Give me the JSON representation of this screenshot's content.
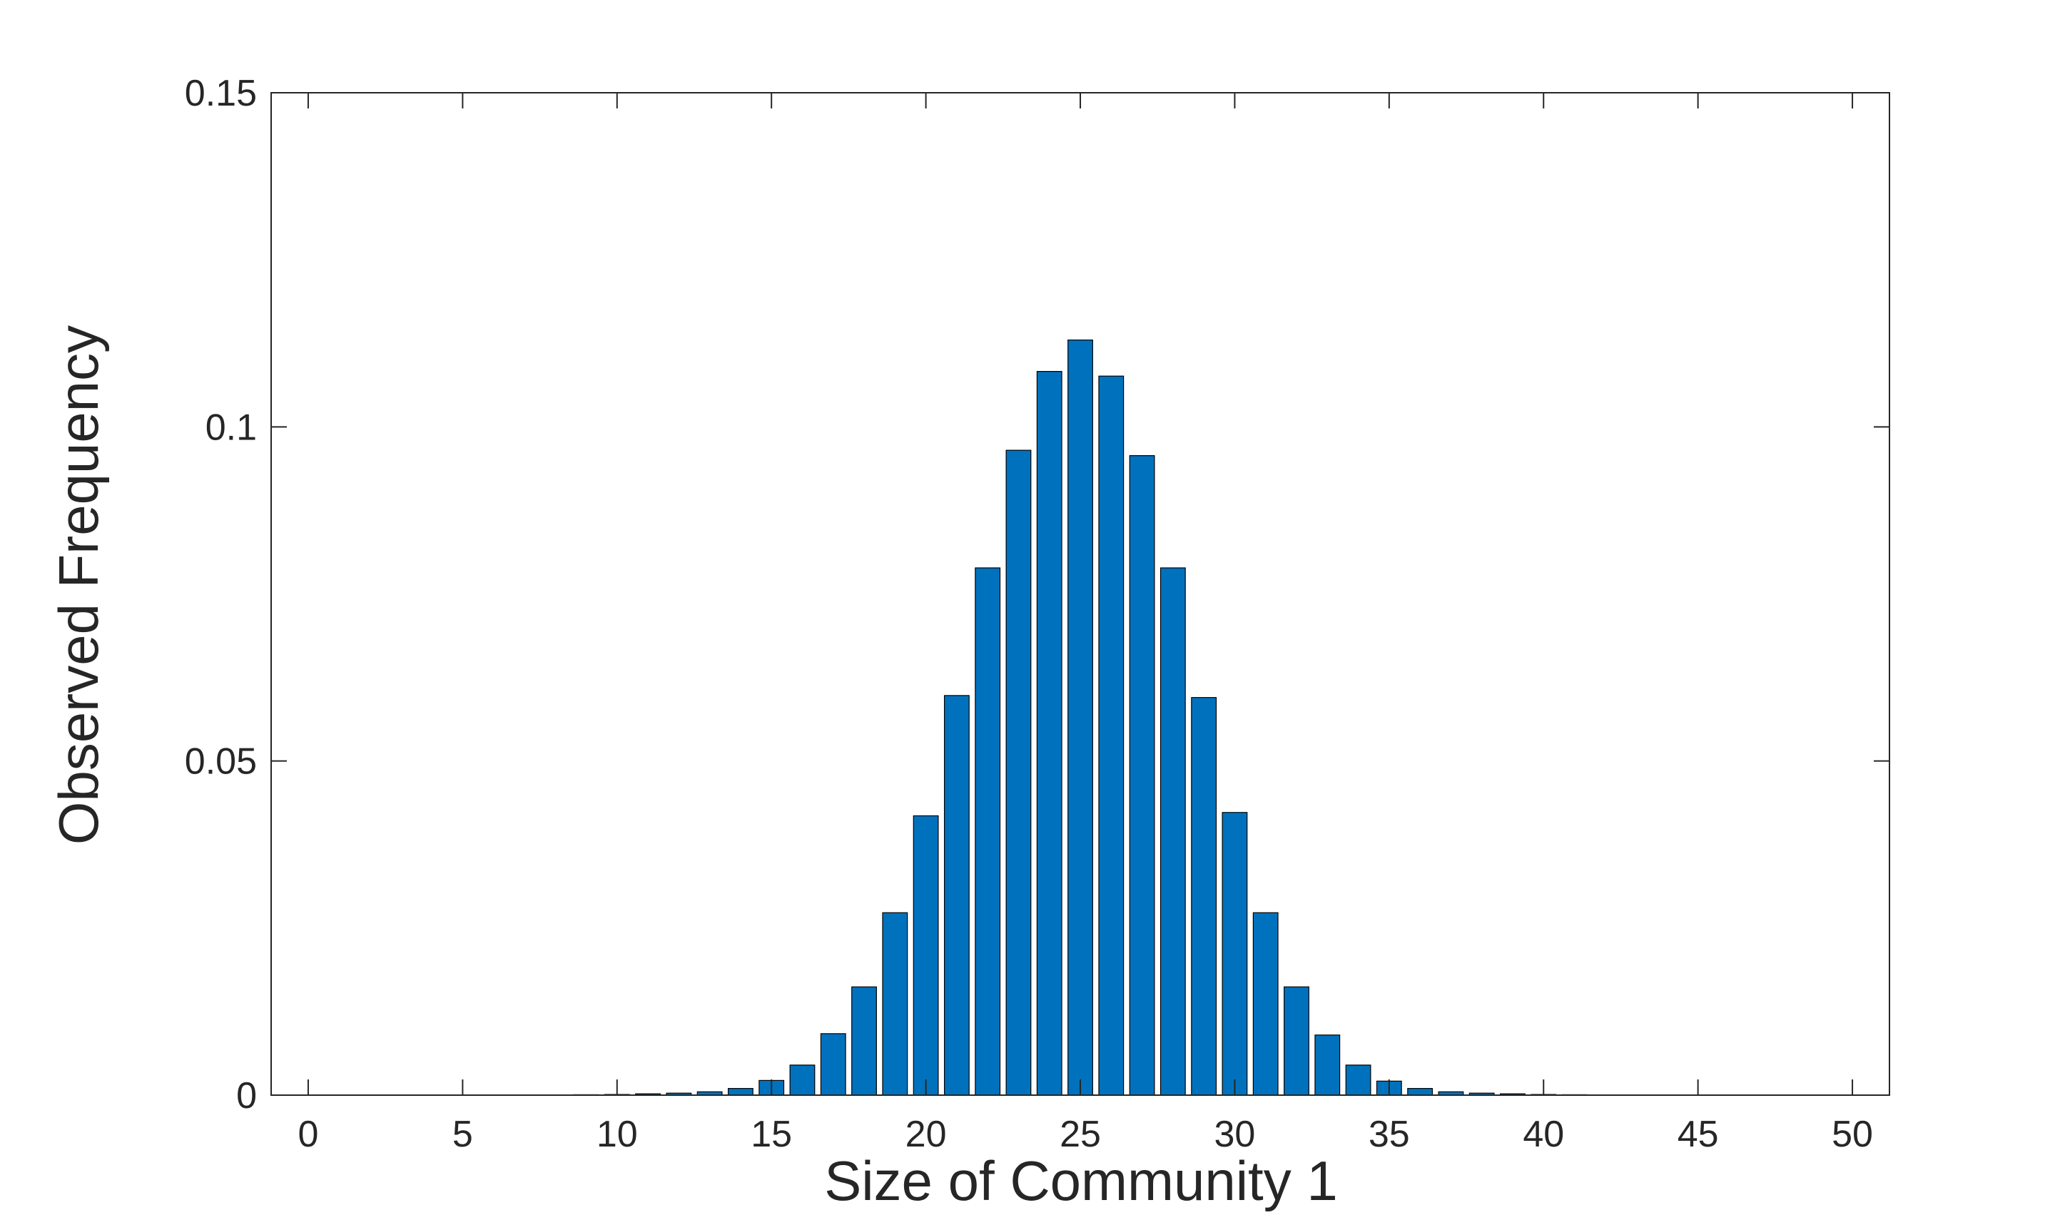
{
  "chart_data": {
    "type": "bar",
    "title": "",
    "xlabel": "Size of Community 1",
    "ylabel": "Observed Frequency",
    "xlim": [
      -1.2,
      51.2
    ],
    "ylim": [
      0,
      0.15
    ],
    "xticks": [
      0,
      5,
      10,
      15,
      20,
      25,
      30,
      35,
      40,
      45,
      50
    ],
    "yticks": [
      0,
      0.05,
      0.1,
      0.15
    ],
    "xtick_labels": [
      "0",
      "5",
      "10",
      "15",
      "20",
      "25",
      "30",
      "35",
      "40",
      "45",
      "50"
    ],
    "ytick_labels": [
      "0",
      "0.05",
      "0.1",
      "0.15"
    ],
    "grid": false,
    "box": true,
    "bar_color": "#0072BD",
    "bar_edge_color": "#000000",
    "x": [
      9,
      10,
      11,
      12,
      13,
      14,
      15,
      16,
      17,
      18,
      19,
      20,
      21,
      22,
      23,
      24,
      25,
      26,
      27,
      28,
      29,
      30,
      31,
      32,
      33,
      34,
      35,
      36,
      37,
      38,
      39,
      40,
      41
    ],
    "values": [
      5e-05,
      0.0001,
      0.0002,
      0.0003,
      0.0005,
      0.001,
      0.0022,
      0.0045,
      0.0092,
      0.0162,
      0.0273,
      0.0418,
      0.0598,
      0.0789,
      0.0965,
      0.1083,
      0.113,
      0.1076,
      0.0957,
      0.0789,
      0.0595,
      0.0423,
      0.0273,
      0.0162,
      0.009,
      0.0045,
      0.0021,
      0.001,
      0.0005,
      0.0003,
      0.0002,
      0.0001,
      5e-05
    ]
  }
}
